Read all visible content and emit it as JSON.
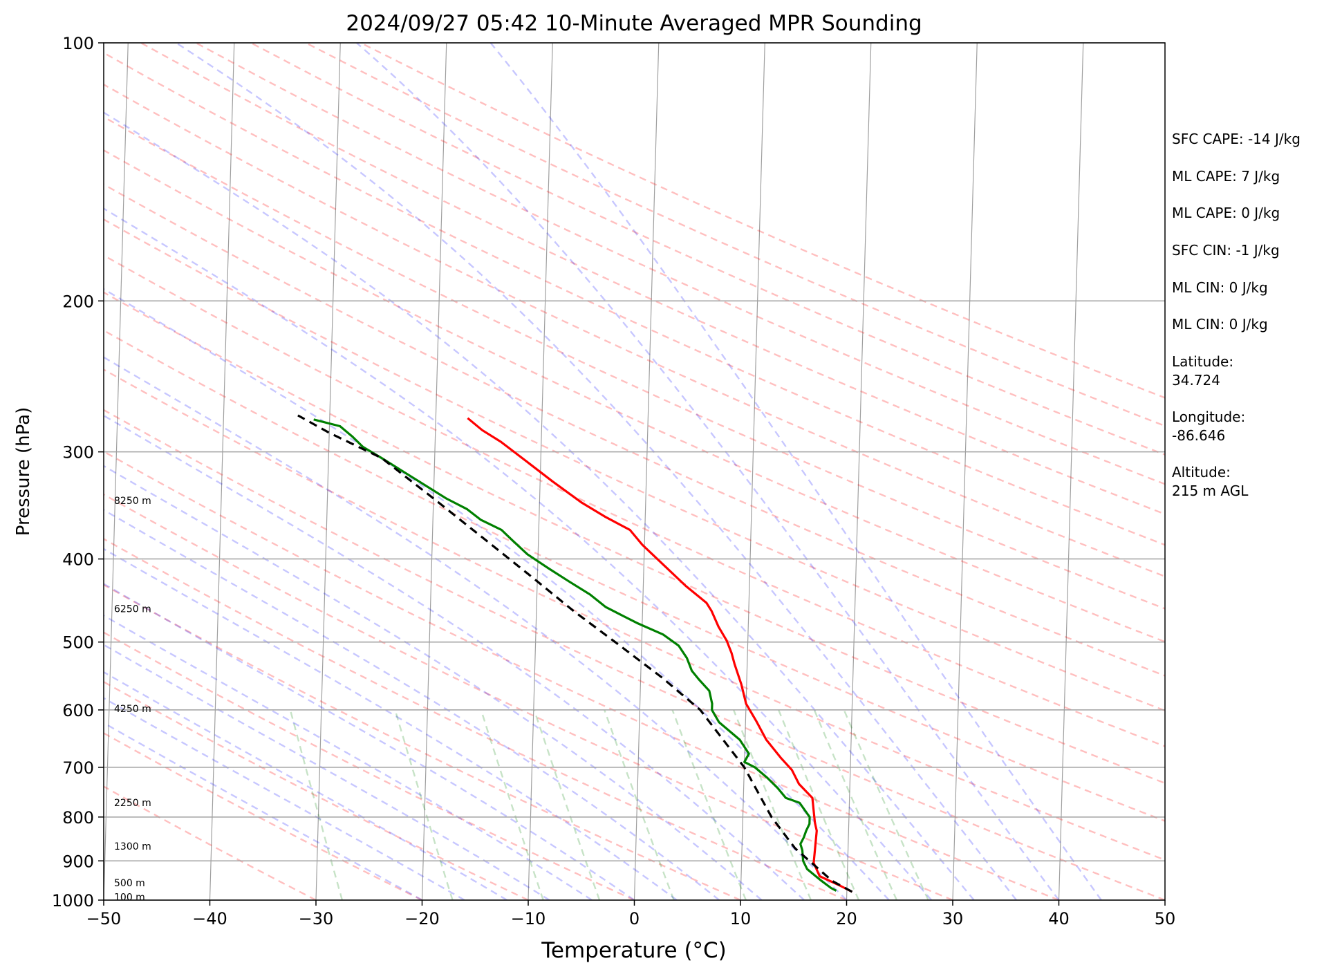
{
  "chart_data": {
    "type": "skew-t",
    "title": "2024/09/27 05:42 10-Minute Averaged MPR Sounding",
    "xlabel": "Temperature (°C)",
    "ylabel": "Pressure (hPa)",
    "xlim": [
      -50,
      50
    ],
    "ylim": [
      1000,
      100
    ],
    "y_scale": "log",
    "x_ticks": [
      -50,
      -40,
      -30,
      -20,
      -10,
      0,
      10,
      20,
      30,
      40,
      50
    ],
    "x_tick_labels": [
      "−50",
      "−40",
      "−30",
      "−20",
      "−10",
      "0",
      "10",
      "20",
      "30",
      "40",
      "50"
    ],
    "y_ticks": [
      1000,
      900,
      800,
      700,
      600,
      500,
      400,
      300,
      200,
      100
    ],
    "y_tick_labels": [
      "1000",
      "900",
      "800",
      "700",
      "600",
      "500",
      "400",
      "300",
      "200",
      "100"
    ],
    "grid": true,
    "height_labels": [
      {
        "text": "100 m",
        "pressure": 992
      },
      {
        "text": "500 m",
        "pressure": 955
      },
      {
        "text": "1300 m",
        "pressure": 865
      },
      {
        "text": "2250 m",
        "pressure": 770
      },
      {
        "text": "4250 m",
        "pressure": 598
      },
      {
        "text": "6250 m",
        "pressure": 457
      },
      {
        "text": "8250 m",
        "pressure": 342
      }
    ],
    "series": [
      {
        "color": "#ff0000",
        "style": "solid",
        "points": [
          {
            "t": 20.5,
            "p": 978
          },
          {
            "t": 19.2,
            "p": 960
          },
          {
            "t": 17.4,
            "p": 938
          },
          {
            "t": 16.8,
            "p": 905
          },
          {
            "t": 17.0,
            "p": 830
          },
          {
            "t": 16.8,
            "p": 812
          },
          {
            "t": 16.5,
            "p": 760
          },
          {
            "t": 15.2,
            "p": 732
          },
          {
            "t": 14.5,
            "p": 705
          },
          {
            "t": 13.4,
            "p": 682
          },
          {
            "t": 12.0,
            "p": 650
          },
          {
            "t": 11.0,
            "p": 618
          },
          {
            "t": 10.0,
            "p": 590
          },
          {
            "t": 9.5,
            "p": 560
          },
          {
            "t": 8.8,
            "p": 530
          },
          {
            "t": 8.5,
            "p": 515
          },
          {
            "t": 8.0,
            "p": 498
          },
          {
            "t": 7.2,
            "p": 480
          },
          {
            "t": 6.5,
            "p": 460
          },
          {
            "t": 6.0,
            "p": 450
          },
          {
            "t": 4.0,
            "p": 430
          },
          {
            "t": 2.0,
            "p": 408
          },
          {
            "t": -0.2,
            "p": 385
          },
          {
            "t": -1.4,
            "p": 370
          },
          {
            "t": -3.8,
            "p": 357
          },
          {
            "t": -6.0,
            "p": 344
          },
          {
            "t": -8.8,
            "p": 325
          },
          {
            "t": -11.0,
            "p": 310
          },
          {
            "t": -13.8,
            "p": 292
          },
          {
            "t": -15.6,
            "p": 283
          },
          {
            "t": -17.0,
            "p": 274
          }
        ]
      },
      {
        "color": "#008000",
        "style": "solid",
        "points": [
          {
            "t": 19.0,
            "p": 975
          },
          {
            "t": 18.5,
            "p": 968
          },
          {
            "t": 17.5,
            "p": 948
          },
          {
            "t": 16.2,
            "p": 920
          },
          {
            "t": 15.8,
            "p": 900
          },
          {
            "t": 15.7,
            "p": 875
          },
          {
            "t": 15.5,
            "p": 860
          },
          {
            "t": 15.8,
            "p": 845
          },
          {
            "t": 16.0,
            "p": 830
          },
          {
            "t": 16.3,
            "p": 815
          },
          {
            "t": 16.3,
            "p": 800
          },
          {
            "t": 15.3,
            "p": 770
          },
          {
            "t": 14.0,
            "p": 760
          },
          {
            "t": 13.2,
            "p": 740
          },
          {
            "t": 12.2,
            "p": 720
          },
          {
            "t": 11.0,
            "p": 700
          },
          {
            "t": 10.0,
            "p": 690
          },
          {
            "t": 10.4,
            "p": 675
          },
          {
            "t": 9.5,
            "p": 650
          },
          {
            "t": 7.5,
            "p": 620
          },
          {
            "t": 6.8,
            "p": 600
          },
          {
            "t": 6.8,
            "p": 590
          },
          {
            "t": 6.5,
            "p": 570
          },
          {
            "t": 5.5,
            "p": 553
          },
          {
            "t": 4.8,
            "p": 540
          },
          {
            "t": 4.3,
            "p": 522
          },
          {
            "t": 3.5,
            "p": 505
          },
          {
            "t": 2.0,
            "p": 490
          },
          {
            "t": -0.5,
            "p": 475
          },
          {
            "t": -2.0,
            "p": 465
          },
          {
            "t": -3.5,
            "p": 455
          },
          {
            "t": -5.0,
            "p": 440
          },
          {
            "t": -7.0,
            "p": 425
          },
          {
            "t": -9.0,
            "p": 410
          },
          {
            "t": -11.0,
            "p": 395
          },
          {
            "t": -12.5,
            "p": 380
          },
          {
            "t": -13.5,
            "p": 370
          },
          {
            "t": -14.5,
            "p": 365
          },
          {
            "t": -15.5,
            "p": 360
          },
          {
            "t": -16.8,
            "p": 350
          },
          {
            "t": -18.8,
            "p": 340
          },
          {
            "t": -20.5,
            "p": 330
          },
          {
            "t": -22.8,
            "p": 317
          },
          {
            "t": -25.0,
            "p": 305
          },
          {
            "t": -26.8,
            "p": 296
          },
          {
            "t": -27.8,
            "p": 288
          },
          {
            "t": -29.0,
            "p": 280
          },
          {
            "t": -31.5,
            "p": 275
          }
        ]
      },
      {
        "color": "#000000",
        "style": "dashed",
        "points": [
          {
            "t": 20.5,
            "p": 978
          },
          {
            "t": 18.6,
            "p": 950
          },
          {
            "t": 15.0,
            "p": 870
          },
          {
            "t": 12.7,
            "p": 800
          },
          {
            "t": 10.0,
            "p": 700
          },
          {
            "t": 7.5,
            "p": 640
          },
          {
            "t": 5.7,
            "p": 600
          },
          {
            "t": 2.0,
            "p": 550
          },
          {
            "t": -2.5,
            "p": 500
          },
          {
            "t": -6.5,
            "p": 460
          },
          {
            "t": -10.5,
            "p": 420
          },
          {
            "t": -15.0,
            "p": 380
          },
          {
            "t": -20.0,
            "p": 340
          },
          {
            "t": -25.0,
            "p": 305
          },
          {
            "t": -30.0,
            "p": 285
          },
          {
            "t": -33.0,
            "p": 272
          }
        ]
      }
    ],
    "background_lines": {
      "isotherms": {
        "color": "#808080",
        "style": "solid"
      },
      "dry_adiabats": {
        "color": "#ff0000",
        "style": "dashed",
        "opacity": 0.25
      },
      "moist_adiabats": {
        "color": "#0000ff",
        "style": "dashed",
        "opacity": 0.22
      },
      "mixing_ratio": {
        "color": "#008000",
        "style": "dashed",
        "opacity": 0.22
      }
    }
  },
  "info_panel": [
    "SFC CAPE: -14 J/kg",
    "ML CAPE: 7 J/kg",
    "ML CAPE: 0 J/kg",
    "SFC CIN: -1 J/kg",
    "ML CIN: 0 J/kg",
    "ML CIN: 0 J/kg",
    "Latitude:",
    "34.724",
    "Longitude:",
    "-86.646",
    "Altitude:",
    "215 m AGL"
  ]
}
